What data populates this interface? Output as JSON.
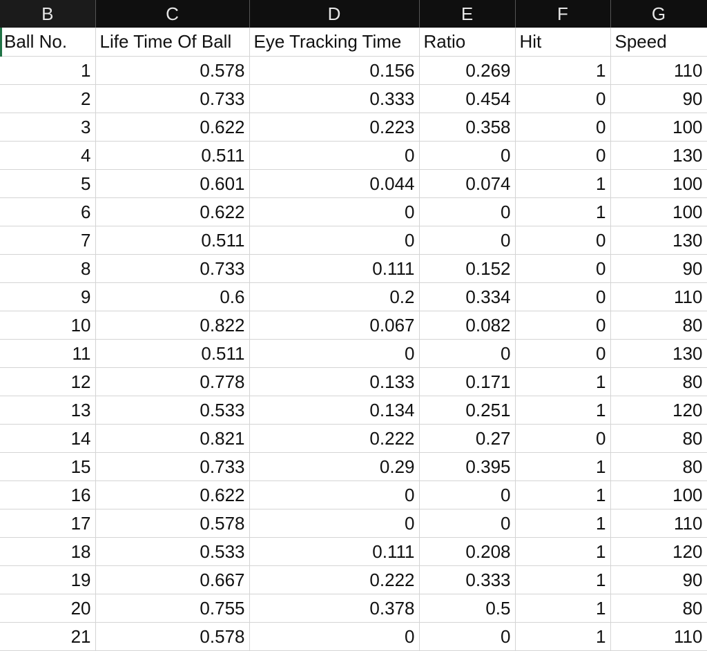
{
  "column_letters": [
    "B",
    "C",
    "D",
    "E",
    "F",
    "G"
  ],
  "headers": [
    "Ball No.",
    "Life Time Of Ball",
    "Eye Tracking Time",
    "Ratio",
    "Hit",
    "Speed"
  ],
  "rows": [
    [
      "1",
      "0.578",
      "0.156",
      "0.269",
      "1",
      "110"
    ],
    [
      "2",
      "0.733",
      "0.333",
      "0.454",
      "0",
      "90"
    ],
    [
      "3",
      "0.622",
      "0.223",
      "0.358",
      "0",
      "100"
    ],
    [
      "4",
      "0.511",
      "0",
      "0",
      "0",
      "130"
    ],
    [
      "5",
      "0.601",
      "0.044",
      "0.074",
      "1",
      "100"
    ],
    [
      "6",
      "0.622",
      "0",
      "0",
      "1",
      "100"
    ],
    [
      "7",
      "0.511",
      "0",
      "0",
      "0",
      "130"
    ],
    [
      "8",
      "0.733",
      "0.111",
      "0.152",
      "0",
      "90"
    ],
    [
      "9",
      "0.6",
      "0.2",
      "0.334",
      "0",
      "110"
    ],
    [
      "10",
      "0.822",
      "0.067",
      "0.082",
      "0",
      "80"
    ],
    [
      "11",
      "0.511",
      "0",
      "0",
      "0",
      "130"
    ],
    [
      "12",
      "0.778",
      "0.133",
      "0.171",
      "1",
      "80"
    ],
    [
      "13",
      "0.533",
      "0.134",
      "0.251",
      "1",
      "120"
    ],
    [
      "14",
      "0.821",
      "0.222",
      "0.27",
      "0",
      "80"
    ],
    [
      "15",
      "0.733",
      "0.29",
      "0.395",
      "1",
      "80"
    ],
    [
      "16",
      "0.622",
      "0",
      "0",
      "1",
      "100"
    ],
    [
      "17",
      "0.578",
      "0",
      "0",
      "1",
      "110"
    ],
    [
      "18",
      "0.533",
      "0.111",
      "0.208",
      "1",
      "120"
    ],
    [
      "19",
      "0.667",
      "0.222",
      "0.333",
      "1",
      "90"
    ],
    [
      "20",
      "0.755",
      "0.378",
      "0.5",
      "1",
      "80"
    ],
    [
      "21",
      "0.578",
      "0",
      "0",
      "1",
      "110"
    ]
  ],
  "colors": {
    "header_bar": "#0f0f0f",
    "gridline": "#d4d4d4",
    "selection_accent": "#217346"
  }
}
